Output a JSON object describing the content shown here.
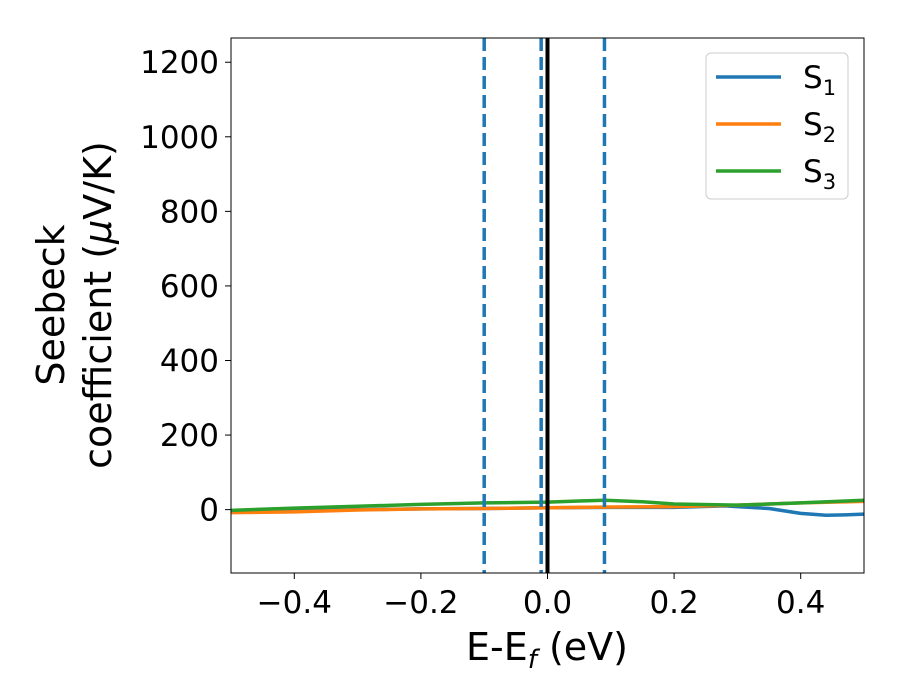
{
  "chart_data": {
    "type": "line",
    "xlabel_main": "E-E",
    "xlabel_sub": "f",
    "xlabel_rest": " (eV)",
    "ylabel_line1": "Seebeck",
    "ylabel_line2": "coefficient  (",
    "ylabel_mu": "μ",
    "ylabel_unit": "V/K)",
    "xlim": [
      -0.5,
      0.5
    ],
    "ylim": [
      -170,
      1265
    ],
    "xticks": [
      -0.4,
      -0.2,
      0.0,
      0.2,
      0.4
    ],
    "xtick_labels": [
      "−0.4",
      "−0.2",
      "0.0",
      "0.2",
      "0.4"
    ],
    "yticks": [
      0,
      200,
      400,
      600,
      800,
      1000,
      1200
    ],
    "ytick_labels": [
      "0",
      "200",
      "400",
      "600",
      "800",
      "1000",
      "1200"
    ],
    "grid": false,
    "legend_position": "top-right",
    "series": [
      {
        "name": "S",
        "sub": "1",
        "color": "#1f77b4",
        "x": [
          -0.5,
          -0.4,
          -0.3,
          -0.2,
          -0.1,
          0.0,
          0.1,
          0.2,
          0.28,
          0.35,
          0.4,
          0.44,
          0.47,
          0.5
        ],
        "y": [
          -7,
          -4,
          0,
          2,
          3,
          5,
          6,
          6,
          10,
          3,
          -10,
          -15,
          -14,
          -12
        ]
      },
      {
        "name": "S",
        "sub": "2",
        "color": "#ff7f0e",
        "x": [
          -0.5,
          -0.4,
          -0.3,
          -0.2,
          -0.1,
          0.0,
          0.1,
          0.2,
          0.3,
          0.4,
          0.5
        ],
        "y": [
          -8,
          -6,
          -1,
          2,
          3,
          5,
          7,
          8,
          12,
          18,
          22
        ]
      },
      {
        "name": "S",
        "sub": "3",
        "color": "#2ca02c",
        "x": [
          -0.5,
          -0.4,
          -0.3,
          -0.2,
          -0.1,
          0.0,
          0.05,
          0.09,
          0.15,
          0.2,
          0.3,
          0.4,
          0.5
        ],
        "y": [
          -2,
          4,
          9,
          14,
          18,
          20,
          23,
          25,
          21,
          15,
          12,
          18,
          25
        ]
      }
    ],
    "vlines": [
      {
        "x": -0.1,
        "color": "#1f77b4",
        "style": "dashed"
      },
      {
        "x": -0.01,
        "color": "#1f77b4",
        "style": "dashed"
      },
      {
        "x": 0.09,
        "color": "#1f77b4",
        "style": "dashed"
      },
      {
        "x": 0.0,
        "color": "#000000",
        "style": "solid"
      }
    ]
  }
}
